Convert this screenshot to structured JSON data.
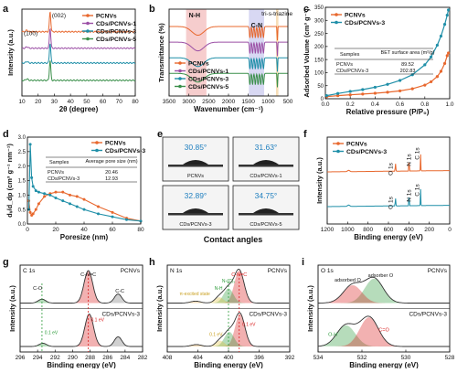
{
  "colors": {
    "pcnv": "#e8682e",
    "pcnv1": "#9b4fa5",
    "pcnv3": "#1f8fa8",
    "pcnv5": "#3a8f4a",
    "black": "#111111",
    "red": "#d92020",
    "green": "#2e9c3c",
    "gray": "#666666"
  },
  "panel_letters": [
    "a",
    "b",
    "c",
    "d",
    "e",
    "f",
    "g",
    "h",
    "i"
  ],
  "chart_data": [
    {
      "id": "a",
      "type": "line",
      "xlabel": "2θ (degree)",
      "ylabel": "Intensity (a.u.)",
      "xlim": [
        10,
        80
      ],
      "xticks": [
        "10",
        "20",
        "30",
        "40",
        "50",
        "60",
        "70",
        "80"
      ],
      "annotations": [
        "(002)",
        "(100)"
      ],
      "series": [
        {
          "name": "PCNVs",
          "color": "#e8682e",
          "offset": 0.74
        },
        {
          "name": "CDs/PCNVs-1",
          "color": "#9b4fa5",
          "offset": 0.55
        },
        {
          "name": "CDs/PCNVs-3",
          "color": "#1f8fa8",
          "offset": 0.38
        },
        {
          "name": "CDs/PCNVs-5",
          "color": "#3a8f4a",
          "offset": 0.18
        }
      ],
      "peaks": [
        {
          "x": 13.1,
          "h": 0.04
        },
        {
          "x": 27.4,
          "h": 0.55
        }
      ]
    },
    {
      "id": "b",
      "type": "line",
      "xlabel": "Wavenumber (cm⁻¹)",
      "ylabel": "Transmittance (%)",
      "xlim": [
        4000,
        500
      ],
      "xticks": [
        "3500",
        "3000",
        "2500",
        "2000",
        "1500",
        "1000",
        "500"
      ],
      "bands": [
        {
          "label": "N-H",
          "from": 3500,
          "to": 2900,
          "color": "#f2b8b8"
        },
        {
          "label": "C-N",
          "from": 1650,
          "to": 1200,
          "color": "#c8c8ee"
        },
        {
          "label": "tri-s-triazine",
          "from": 850,
          "to": 780,
          "color": "#f3d09a"
        }
      ],
      "series": [
        {
          "name": "PCNVs",
          "color": "#e8682e",
          "offset": 0.8
        },
        {
          "name": "CDs/PCNVs-1",
          "color": "#9b4fa5",
          "offset": 0.62
        },
        {
          "name": "CDs/PCNVs-3",
          "color": "#1f8fa8",
          "offset": 0.44
        },
        {
          "name": "CDs/PCNVs-5",
          "color": "#3a8f4a",
          "offset": 0.26
        }
      ]
    },
    {
      "id": "c",
      "type": "line",
      "xlabel": "Relative pressure (P/P₀)",
      "ylabel": "Adsorbed Volume (cm³ g⁻¹)",
      "xlim": [
        0,
        1.0
      ],
      "ylim": [
        0,
        350
      ],
      "xticks": [
        "0.0",
        "0.2",
        "0.4",
        "0.6",
        "0.8",
        "1.0"
      ],
      "yticks": [
        "0",
        "50",
        "100",
        "150",
        "200",
        "250",
        "300",
        "350"
      ],
      "series": [
        {
          "name": "PCNVs",
          "color": "#e8682e",
          "x": [
            0.01,
            0.1,
            0.2,
            0.3,
            0.4,
            0.5,
            0.6,
            0.7,
            0.8,
            0.85,
            0.9,
            0.93,
            0.96,
            0.98,
            0.99
          ],
          "y": [
            8,
            12,
            15,
            18,
            21,
            25,
            30,
            38,
            52,
            65,
            85,
            105,
            135,
            165,
            175
          ]
        },
        {
          "name": "CDs/PCNVs-3",
          "color": "#1f8fa8",
          "x": [
            0.01,
            0.1,
            0.2,
            0.3,
            0.4,
            0.5,
            0.6,
            0.7,
            0.8,
            0.85,
            0.9,
            0.93,
            0.96,
            0.98,
            0.99
          ],
          "y": [
            12,
            20,
            28,
            35,
            44,
            55,
            70,
            92,
            130,
            160,
            205,
            240,
            285,
            320,
            340
          ]
        }
      ],
      "table": {
        "header": [
          "Samples",
          "BET surface area (m²/g)"
        ],
        "rows": [
          [
            "PCNVs",
            "89.52"
          ],
          [
            "CDs/PCNVs-3",
            "202.83"
          ]
        ]
      }
    },
    {
      "id": "d",
      "type": "line",
      "xlabel": "Poresize (nm)",
      "ylabel": "dᵥ/d_dp (cm³ g⁻¹ nm⁻¹)",
      "xlim": [
        0,
        80
      ],
      "ylim": [
        0,
        3
      ],
      "xticks": [
        "0",
        "20",
        "40",
        "60",
        "80"
      ],
      "yticks": [
        "0.0",
        "0.5",
        "1.0",
        "1.5",
        "2.0",
        "2.5",
        "3.0"
      ],
      "series": [
        {
          "name": "PCNVs",
          "color": "#e8682e",
          "x": [
            1,
            2,
            3,
            4,
            6,
            8,
            12,
            16,
            20,
            25,
            30,
            35,
            40,
            50,
            60,
            70,
            80
          ],
          "y": [
            0.8,
            0.4,
            0.3,
            0.35,
            0.5,
            0.7,
            0.95,
            1.05,
            1.1,
            1.1,
            1.0,
            0.95,
            0.85,
            0.6,
            0.4,
            0.2,
            0.1
          ]
        },
        {
          "name": "CDs/PCNVs-3",
          "color": "#1f8fa8",
          "x": [
            1,
            2,
            3,
            4,
            6,
            8,
            12,
            16,
            20,
            25,
            30,
            35,
            40,
            50,
            60,
            70,
            80
          ],
          "y": [
            0.5,
            2.75,
            1.6,
            1.3,
            1.15,
            1.1,
            1.05,
            1.0,
            0.9,
            0.8,
            0.7,
            0.6,
            0.5,
            0.35,
            0.25,
            0.15,
            0.1
          ]
        }
      ],
      "table": {
        "header": [
          "Samples",
          "Average pore size (nm)"
        ],
        "rows": [
          [
            "PCNVs",
            "20.46"
          ],
          [
            "CDs/PCNVs-3",
            "12.93"
          ]
        ]
      }
    },
    {
      "id": "e",
      "type": "table",
      "xlabel": "Contact angles",
      "cells": [
        {
          "angle": "30.85°",
          "label": "PCNVs"
        },
        {
          "angle": "31.63°",
          "label": "CDs/PCNVs-1"
        },
        {
          "angle": "32.89°",
          "label": "CDs/PCNVs-3"
        },
        {
          "angle": "34.75°",
          "label": "CDs/PCNVs-5"
        }
      ]
    },
    {
      "id": "f",
      "type": "line",
      "xlabel": "Binding energy (eV)",
      "ylabel": "Intensity (a.u.)",
      "xlim": [
        1200,
        0
      ],
      "xticks": [
        "1200",
        "1000",
        "800",
        "600",
        "400",
        "200",
        "0"
      ],
      "series": [
        {
          "name": "PCNVs",
          "color": "#e8682e"
        },
        {
          "name": "CDs/PCNVs-3",
          "color": "#1f8fa8"
        }
      ],
      "annotations": [
        "O 1s",
        "C 1s",
        "N 1s",
        "O 1s",
        "C 1s",
        "N 1s"
      ]
    },
    {
      "id": "g",
      "type": "line",
      "xlabel": "Binding energy (eV)",
      "ylabel": "Intensity (a.u.)",
      "xlim": [
        296,
        282
      ],
      "xticks": [
        "296",
        "294",
        "292",
        "290",
        "288",
        "286",
        "284",
        "282"
      ],
      "title_left": "C 1s",
      "title_right_top": "PCNVs",
      "title_right_bottom": "CDs/PCNVs-3",
      "annotations": [
        "C-N=C",
        "C-O",
        "C-C",
        "0.1 eV",
        "0.1 eV"
      ]
    },
    {
      "id": "h",
      "type": "line",
      "xlabel": "Binding energy (eV)",
      "ylabel": "Intensity (a.u.)",
      "xlim": [
        408,
        392
      ],
      "xticks": [
        "408",
        "404",
        "400",
        "396",
        "392"
      ],
      "title_left": "N 1s",
      "title_right_top": "PCNVs",
      "title_right_bottom": "CDs/PCNVs-3",
      "annotations": [
        "C-N=C",
        "N-(C)₃",
        "N-H",
        "π-excited state",
        "0.1 eV",
        "0.1 eV"
      ]
    },
    {
      "id": "i",
      "type": "line",
      "xlabel": "Binding energy (eV)",
      "ylabel": "Intensity (a.u.)",
      "xlim": [
        535,
        527
      ],
      "xticks": [
        "534",
        "532",
        "530",
        "528"
      ],
      "title_left": "O 1s",
      "title_right_top": "PCNVs",
      "title_right_bottom": "CDs/PCNVs-3",
      "annotations": [
        "adsorbed O",
        "adsorber O",
        "O-H",
        "C=O"
      ]
    }
  ]
}
